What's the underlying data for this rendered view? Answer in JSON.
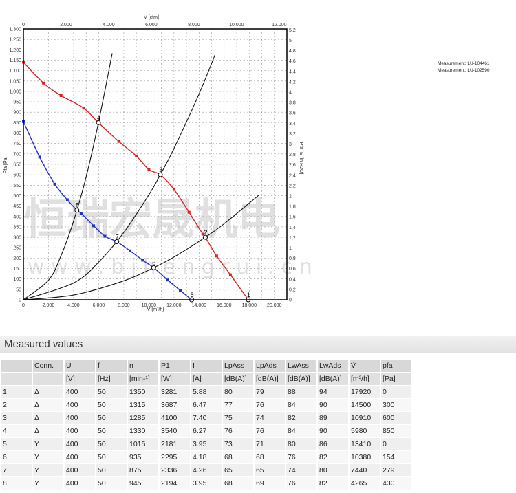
{
  "legend_text": [
    "Measurement: LU-104461",
    "Measurement: LU-102590"
  ],
  "watermark": {
    "cn": "恒瑞宏晟机电",
    "url": "w w w . b j h e n g r u i . c n"
  },
  "chart_data": {
    "type": "line",
    "xlabel": "V [m³/h]",
    "x2label": "V [cfm]",
    "ylabel": "Pfa [Pa]",
    "y2label": "Pfa_E [in H2O]",
    "xlim": [
      0,
      21000
    ],
    "ylim": [
      0,
      1300
    ],
    "x_ticks": [
      0,
      2000,
      4000,
      6000,
      8000,
      10000,
      12000,
      14000,
      16000,
      18000,
      20000
    ],
    "x_tick_labels": [
      "0",
      "2.000",
      "4.000",
      "6.000",
      "8.000",
      "10.000",
      "12.000",
      "14.000",
      "16.000",
      "18.000",
      "20.000"
    ],
    "x2_ticks": [
      0,
      2000,
      4000,
      6000,
      8000,
      10000,
      12000
    ],
    "x2_tick_labels": [
      "0",
      "2.000",
      "4.000",
      "6.000",
      "8.000",
      "10.000",
      "12.000"
    ],
    "y_ticks": [
      0,
      50,
      100,
      150,
      200,
      250,
      300,
      350,
      400,
      450,
      500,
      550,
      600,
      650,
      700,
      750,
      800,
      850,
      900,
      950,
      1000,
      1050,
      1100,
      1150,
      1200,
      1250,
      1300
    ],
    "y_tick_labels": [
      "0",
      "50",
      "100",
      "150",
      "200",
      "250",
      "300",
      "350",
      "400",
      "450",
      "500",
      "550",
      "600",
      "650",
      "700",
      "750",
      "800",
      "850",
      "900",
      "950",
      "1.000",
      "1.050",
      "1.100",
      "1.150",
      "1.200",
      "1.250",
      "1.300"
    ],
    "y2_ticks": [
      0,
      0.2,
      0.4,
      0.6,
      0.8,
      1,
      1.2,
      1.4,
      1.6,
      1.8,
      2,
      2.2,
      2.4,
      2.6,
      2.8,
      3,
      3.2,
      3.4,
      3.6,
      3.8,
      4,
      4.2,
      4.4,
      4.6,
      4.8,
      5,
      5.2
    ],
    "y2_tick_labels": [
      "0",
      "0,2",
      "0,4",
      "0,6",
      "0,8",
      "1",
      "1,2",
      "1,4",
      "1,6",
      "1,8",
      "2",
      "2,2",
      "2,4",
      "2,6",
      "2,8",
      "3",
      "3,2",
      "3,4",
      "3,6",
      "3,8",
      "4",
      "4,2",
      "4,4",
      "4,6",
      "4,8",
      "5",
      "5,2"
    ],
    "grid": true,
    "series": [
      {
        "color": "#e02020",
        "marker": true,
        "points": [
          [
            0,
            1140
          ],
          [
            1600,
            1040
          ],
          [
            3000,
            980
          ],
          [
            4800,
            920
          ],
          [
            5980,
            850
          ],
          [
            7600,
            760
          ],
          [
            9000,
            690
          ],
          [
            10000,
            625
          ],
          [
            10910,
            600
          ],
          [
            12000,
            530
          ],
          [
            13200,
            420
          ],
          [
            14300,
            315
          ],
          [
            14500,
            300
          ],
          [
            15400,
            210
          ],
          [
            16500,
            120
          ],
          [
            17920,
            0
          ]
        ]
      },
      {
        "color": "#2030c8",
        "marker": true,
        "points": [
          [
            0,
            855
          ],
          [
            1300,
            685
          ],
          [
            2500,
            555
          ],
          [
            3500,
            480
          ],
          [
            4265,
            430
          ],
          [
            4600,
            415
          ],
          [
            5600,
            355
          ],
          [
            6500,
            305
          ],
          [
            7440,
            279
          ],
          [
            8500,
            235
          ],
          [
            9500,
            190
          ],
          [
            10380,
            154
          ],
          [
            11500,
            95
          ],
          [
            12500,
            45
          ],
          [
            13410,
            0
          ]
        ]
      },
      {
        "color": "#111111",
        "marker": false,
        "points": [
          [
            0,
            0
          ],
          [
            2000,
            94
          ],
          [
            3000,
            212
          ],
          [
            4000,
            378
          ],
          [
            5000,
            590
          ],
          [
            5980,
            850
          ],
          [
            7080,
            1183
          ]
        ]
      },
      {
        "color": "#111111",
        "marker": false,
        "points": [
          [
            0,
            0
          ],
          [
            4000,
            81
          ],
          [
            6000,
            181
          ],
          [
            8000,
            323
          ],
          [
            10000,
            504
          ],
          [
            10910,
            600
          ],
          [
            12000,
            726
          ],
          [
            14000,
            988
          ],
          [
            15260,
            1174
          ]
        ]
      },
      {
        "color": "#111111",
        "marker": false,
        "points": [
          [
            0,
            0
          ],
          [
            4000,
            23
          ],
          [
            8000,
            91
          ],
          [
            10380,
            154
          ],
          [
            12000,
            205
          ],
          [
            14500,
            300
          ],
          [
            16000,
            365
          ],
          [
            18800,
            504
          ]
        ]
      }
    ],
    "operating_points": [
      {
        "label": "1",
        "x": 17920,
        "y": 0
      },
      {
        "label": "2",
        "x": 14500,
        "y": 300
      },
      {
        "label": "3",
        "x": 10910,
        "y": 600
      },
      {
        "label": "4",
        "x": 5980,
        "y": 850
      },
      {
        "label": "5",
        "x": 13410,
        "y": 0
      },
      {
        "label": "6",
        "x": 10380,
        "y": 154
      },
      {
        "label": "7",
        "x": 7440,
        "y": 279
      },
      {
        "label": "8",
        "x": 4265,
        "y": 430
      }
    ]
  },
  "measured": {
    "title": "Measured values",
    "headers": [
      "",
      "Conn.",
      "U",
      "f",
      "n",
      "P1",
      "I",
      "LpAss",
      "LpAds",
      "LwAss",
      "LwAds",
      "V̇",
      "pfa"
    ],
    "units": [
      "",
      "",
      "[V]",
      "[Hz]",
      "[min-¹]",
      "[W]",
      "[A]",
      "[dB(A)]",
      "[dB(A)]",
      "[dB(A)]",
      "[dB(A)]",
      "[m³/h]",
      "[Pa]"
    ],
    "rows": [
      [
        "1",
        "Δ",
        "400",
        "50",
        "1350",
        "3281",
        "5.88",
        "80",
        "79",
        "88",
        "94",
        "17920",
        "0"
      ],
      [
        "2",
        "Δ",
        "400",
        "50",
        "1315",
        "3687",
        "6.47",
        "77",
        "76",
        "84",
        "90",
        "14500",
        "300"
      ],
      [
        "3",
        "Δ",
        "400",
        "50",
        "1285",
        "4100",
        "7.40",
        "75",
        "74",
        "82",
        "89",
        "10910",
        "600"
      ],
      [
        "4",
        "Δ",
        "400",
        "50",
        "1330",
        "3540",
        "6.27",
        "76",
        "76",
        "84",
        "90",
        "5980",
        "850"
      ],
      [
        "5",
        "Y",
        "400",
        "50",
        "1015",
        "2181",
        "3.95",
        "73",
        "71",
        "80",
        "86",
        "13410",
        "0"
      ],
      [
        "6",
        "Y",
        "400",
        "50",
        "935",
        "2295",
        "4.18",
        "68",
        "68",
        "76",
        "82",
        "10380",
        "154"
      ],
      [
        "7",
        "Y",
        "400",
        "50",
        "875",
        "2336",
        "4.26",
        "65",
        "65",
        "74",
        "80",
        "7440",
        "279"
      ],
      [
        "8",
        "Y",
        "400",
        "50",
        "945",
        "2194",
        "3.95",
        "68",
        "69",
        "76",
        "82",
        "4265",
        "430"
      ]
    ]
  }
}
